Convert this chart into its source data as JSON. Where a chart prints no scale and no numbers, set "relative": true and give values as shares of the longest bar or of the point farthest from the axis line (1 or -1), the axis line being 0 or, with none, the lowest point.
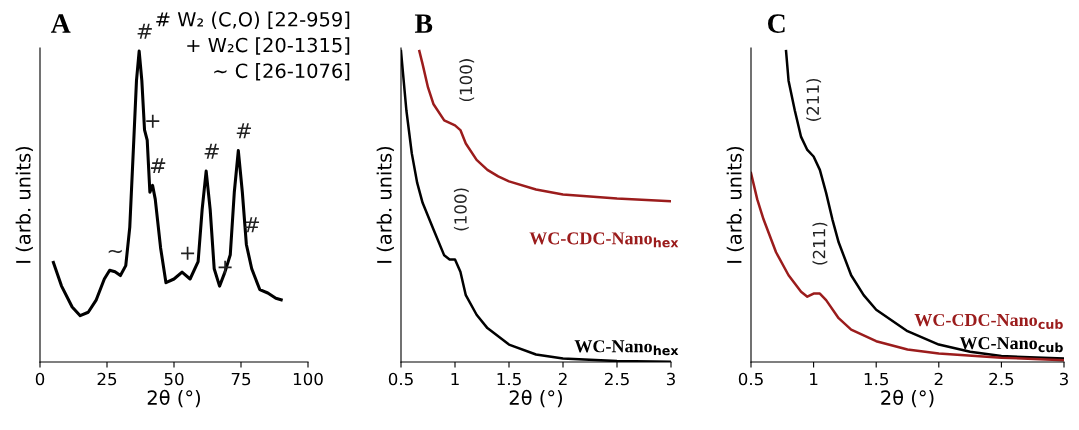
{
  "chart_data": [
    {
      "type": "line",
      "title": "A",
      "xlabel": "2θ (°)",
      "ylabel": "I (arb. units)",
      "relative": true,
      "xlim": [
        0,
        100
      ],
      "xticks": [
        0,
        25,
        50,
        75,
        100
      ],
      "grid": false,
      "legend": false,
      "x": [
        5,
        8,
        12,
        15,
        18,
        21,
        24,
        26,
        28,
        30,
        32,
        33.5,
        35,
        36,
        37,
        38,
        39,
        40,
        41,
        42,
        43,
        45,
        47,
        50,
        53,
        56,
        59,
        60.5,
        62,
        63.5,
        65,
        67,
        69,
        71,
        72.5,
        74,
        75.5,
        77,
        79,
        82,
        85,
        88,
        90
      ],
      "series": [
        {
          "color": "#000000",
          "values": [
            0.32,
            0.245,
            0.177,
            0.149,
            0.16,
            0.2,
            0.267,
            0.295,
            0.29,
            0.278,
            0.31,
            0.434,
            0.714,
            0.905,
            1,
            0.905,
            0.747,
            0.714,
            0.546,
            0.568,
            0.524,
            0.367,
            0.255,
            0.267,
            0.289,
            0.267,
            0.323,
            0.49,
            0.614,
            0.49,
            0.3,
            0.244,
            0.289,
            0.345,
            0.546,
            0.68,
            0.546,
            0.378,
            0.3,
            0.233,
            0.222,
            0.205,
            0.2
          ]
        }
      ],
      "annotations": [
        "# W₂ (C,O) [22-959]",
        "+ W₂C [20-1315]",
        "~ C [26-1076]",
        {
          "text": "~",
          "x": 26,
          "y": 0.295
        },
        {
          "text": "#",
          "x": 37,
          "y": 1
        },
        {
          "text": "+",
          "x": 40,
          "y": 0.714
        },
        {
          "text": "#",
          "x": 42,
          "y": 0.568
        },
        {
          "text": "+",
          "x": 53,
          "y": 0.289
        },
        {
          "text": "#",
          "x": 62,
          "y": 0.614
        },
        {
          "text": "+",
          "x": 67,
          "y": 0.244
        },
        {
          "text": "#",
          "x": 74,
          "y": 0.68
        },
        {
          "text": "#",
          "x": 77,
          "y": 0.378
        }
      ]
    },
    {
      "type": "line",
      "title": "B",
      "xlabel": "2θ (°)",
      "ylabel": "I (arb. units)",
      "relative": true,
      "xlim": [
        0.5,
        3
      ],
      "xticks": [
        0.5,
        1,
        1.5,
        2,
        2.5,
        3
      ],
      "grid": false,
      "legend": false,
      "series": [
        {
          "name": "WC-Nano$_{hex}$",
          "color": "#000000",
          "x": [
            0.5,
            0.55,
            0.6,
            0.65,
            0.7,
            0.8,
            0.9,
            0.95,
            1.0,
            1.05,
            1.1,
            1.2,
            1.3,
            1.5,
            1.75,
            2.0,
            2.5,
            3.0
          ],
          "values": [
            1.0,
            0.809,
            0.671,
            0.576,
            0.512,
            0.427,
            0.343,
            0.33,
            0.33,
            0.29,
            0.215,
            0.152,
            0.109,
            0.056,
            0.024,
            0.011,
            0.003,
            0.001
          ]
        },
        {
          "name": "WC-CDC-Nano$_{hex}$",
          "color": "#9b1c1c",
          "x": [
            0.67,
            0.7,
            0.75,
            0.8,
            0.9,
            1.0,
            1.05,
            1.1,
            1.2,
            1.3,
            1.4,
            1.5,
            1.75,
            2.0,
            2.5,
            3.0
          ],
          "values": [
            1.0,
            0.958,
            0.883,
            0.83,
            0.777,
            0.761,
            0.746,
            0.703,
            0.65,
            0.618,
            0.597,
            0.581,
            0.555,
            0.539,
            0.526,
            0.517
          ]
        }
      ],
      "annotations": [
        {
          "text": "(100)",
          "x": 1.05,
          "y": 0.746
        },
        {
          "text": "(100)",
          "x": 1.0,
          "y": 0.33
        }
      ]
    },
    {
      "type": "line",
      "title": "C",
      "xlabel": "2θ (°)",
      "ylabel": "I (arb. units)",
      "relative": true,
      "xlim": [
        0.5,
        3
      ],
      "xticks": [
        0.5,
        1,
        1.5,
        2,
        2.5,
        3
      ],
      "grid": false,
      "legend": false,
      "series": [
        {
          "name": "WC-Nano$_{cub}$",
          "color": "#000000",
          "x": [
            0.78,
            0.8,
            0.85,
            0.9,
            0.95,
            1.0,
            1.05,
            1.1,
            1.15,
            1.2,
            1.3,
            1.4,
            1.5,
            1.75,
            2.0,
            2.25,
            2.5,
            3.0
          ],
          "values": [
            1.0,
            0.905,
            0.809,
            0.724,
            0.682,
            0.661,
            0.618,
            0.544,
            0.459,
            0.385,
            0.279,
            0.215,
            0.168,
            0.099,
            0.056,
            0.033,
            0.019,
            0.011
          ]
        },
        {
          "name": "WC-CDC-Nano$_{cub}$",
          "color": "#9b1c1c",
          "x": [
            0.5,
            0.55,
            0.6,
            0.7,
            0.8,
            0.9,
            0.95,
            1.0,
            1.05,
            1.1,
            1.2,
            1.3,
            1.5,
            1.75,
            2.0,
            2.5,
            3.0
          ],
          "values": [
            0.608,
            0.523,
            0.459,
            0.353,
            0.279,
            0.226,
            0.21,
            0.22,
            0.22,
            0.199,
            0.141,
            0.104,
            0.067,
            0.04,
            0.027,
            0.014,
            0.006
          ]
        }
      ],
      "annotations": [
        {
          "text": "(211)",
          "x": 0.95,
          "y": 0.682
        },
        {
          "text": "(211)",
          "x": 1.0,
          "y": 0.22
        }
      ]
    }
  ]
}
